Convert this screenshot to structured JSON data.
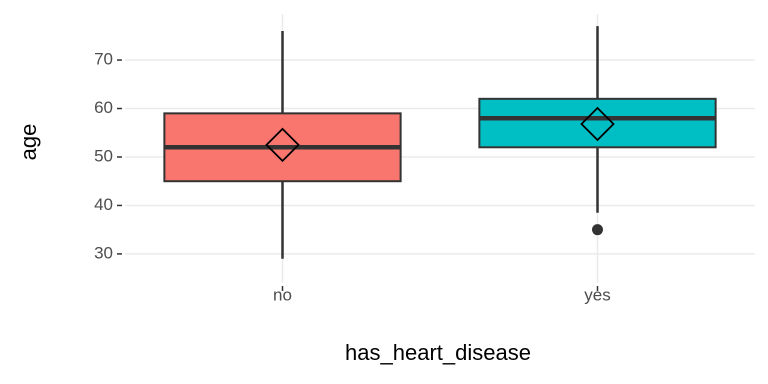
{
  "chart_data": {
    "type": "boxplot",
    "x_label": "has_heart_disease",
    "y_label": "age",
    "categories": [
      "no",
      "yes"
    ],
    "boxes": [
      {
        "low": 29,
        "q1": 45,
        "median": 52,
        "q3": 59,
        "high": 76,
        "mean": 52.5,
        "outliers": [],
        "color": "#F8766D"
      },
      {
        "low": 38.5,
        "q1": 52,
        "median": 58,
        "q3": 62,
        "high": 77,
        "mean": 56.8,
        "outliers": [
          35
        ],
        "color": "#00BFC4"
      }
    ],
    "ylim": [
      24,
      79.5
    ],
    "yticks": [
      30,
      40,
      50,
      60,
      70
    ],
    "grid": true
  }
}
